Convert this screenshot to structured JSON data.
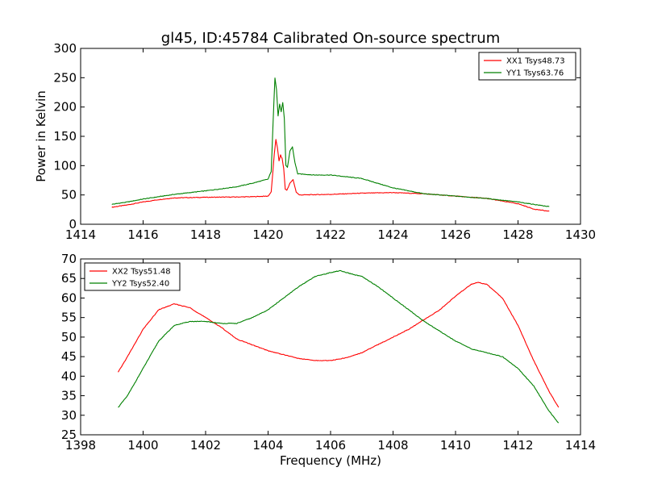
{
  "chart_data": [
    {
      "type": "line",
      "title": "gl45, ID:45784 Calibrated On-source spectrum",
      "xlabel": "",
      "ylabel": "Power in Kelvin",
      "xlim": [
        1414,
        1430
      ],
      "ylim": [
        0,
        300
      ],
      "xticks": [
        "1414",
        "1416",
        "1418",
        "1420",
        "1422",
        "1424",
        "1426",
        "1428",
        "1430"
      ],
      "yticks": [
        "0",
        "50",
        "100",
        "150",
        "200",
        "250",
        "300"
      ],
      "legend_position": "top-right",
      "series": [
        {
          "name": "XX1 Tsys48.73",
          "color": "#ff0000",
          "points": [
            [
              1415,
              29
            ],
            [
              1415.5,
              33
            ],
            [
              1416,
              38
            ],
            [
              1416.5,
              42
            ],
            [
              1417,
              45
            ],
            [
              1418,
              46
            ],
            [
              1419,
              46.5
            ],
            [
              1419.5,
              47
            ],
            [
              1420,
              48
            ],
            [
              1420.1,
              55
            ],
            [
              1420.2,
              120
            ],
            [
              1420.25,
              145
            ],
            [
              1420.3,
              130
            ],
            [
              1420.35,
              108
            ],
            [
              1420.4,
              118
            ],
            [
              1420.45,
              112
            ],
            [
              1420.5,
              95
            ],
            [
              1420.55,
              60
            ],
            [
              1420.6,
              58
            ],
            [
              1420.7,
              70
            ],
            [
              1420.8,
              76
            ],
            [
              1420.9,
              55
            ],
            [
              1421,
              50
            ],
            [
              1422,
              51
            ],
            [
              1423,
              53
            ],
            [
              1424,
              54
            ],
            [
              1425,
              52
            ],
            [
              1426,
              48
            ],
            [
              1427,
              44
            ],
            [
              1428,
              35
            ],
            [
              1428.5,
              26
            ],
            [
              1429,
              22
            ]
          ]
        },
        {
          "name": "YY1 Tsys63.76",
          "color": "#008000",
          "points": [
            [
              1415,
              34
            ],
            [
              1415.5,
              38
            ],
            [
              1416,
              43
            ],
            [
              1416.5,
              47
            ],
            [
              1417,
              51
            ],
            [
              1418,
              57
            ],
            [
              1419,
              64
            ],
            [
              1419.5,
              70
            ],
            [
              1420,
              77
            ],
            [
              1420.1,
              90
            ],
            [
              1420.18,
              200
            ],
            [
              1420.22,
              250
            ],
            [
              1420.27,
              230
            ],
            [
              1420.32,
              185
            ],
            [
              1420.37,
              205
            ],
            [
              1420.42,
              192
            ],
            [
              1420.47,
              208
            ],
            [
              1420.52,
              180
            ],
            [
              1420.57,
              100
            ],
            [
              1420.62,
              97
            ],
            [
              1420.7,
              125
            ],
            [
              1420.78,
              132
            ],
            [
              1420.86,
              105
            ],
            [
              1420.95,
              86
            ],
            [
              1421.5,
              84
            ],
            [
              1422,
              84
            ],
            [
              1423,
              78
            ],
            [
              1424,
              62
            ],
            [
              1425,
              52
            ],
            [
              1426,
              48
            ],
            [
              1427,
              44
            ],
            [
              1428,
              38
            ],
            [
              1429,
              30
            ]
          ]
        }
      ]
    },
    {
      "type": "line",
      "title": "",
      "xlabel": "Frequency (MHz)",
      "ylabel": "",
      "xlim": [
        1398,
        1414
      ],
      "ylim": [
        25,
        70
      ],
      "xticks": [
        "1398",
        "1400",
        "1402",
        "1404",
        "1406",
        "1408",
        "1410",
        "1412",
        "1414"
      ],
      "yticks": [
        "25",
        "30",
        "35",
        "40",
        "45",
        "50",
        "55",
        "60",
        "65",
        "70"
      ],
      "legend_position": "top-left",
      "series": [
        {
          "name": "XX2 Tsys51.48",
          "color": "#ff0000",
          "points": [
            [
              1399.2,
              41
            ],
            [
              1399.5,
              45
            ],
            [
              1400,
              52
            ],
            [
              1400.5,
              57
            ],
            [
              1401,
              58.5
            ],
            [
              1401.5,
              57.5
            ],
            [
              1402,
              55
            ],
            [
              1402.5,
              52.5
            ],
            [
              1403,
              49.5
            ],
            [
              1403.5,
              48
            ],
            [
              1404,
              46.5
            ],
            [
              1404.5,
              45.5
            ],
            [
              1405,
              44.5
            ],
            [
              1405.5,
              44
            ],
            [
              1406,
              44
            ],
            [
              1406.5,
              44.7
            ],
            [
              1407,
              46
            ],
            [
              1407.5,
              48
            ],
            [
              1408,
              50
            ],
            [
              1408.5,
              52
            ],
            [
              1409,
              54.5
            ],
            [
              1409.5,
              57
            ],
            [
              1410,
              60.5
            ],
            [
              1410.5,
              63.5
            ],
            [
              1410.7,
              64
            ],
            [
              1411,
              63.5
            ],
            [
              1411.5,
              60
            ],
            [
              1412,
              53
            ],
            [
              1412.5,
              44
            ],
            [
              1413,
              36
            ],
            [
              1413.3,
              32
            ]
          ]
        },
        {
          "name": "YY2 Tsys52.40",
          "color": "#008000",
          "points": [
            [
              1399.2,
              32
            ],
            [
              1399.5,
              35
            ],
            [
              1400,
              42
            ],
            [
              1400.5,
              49
            ],
            [
              1401,
              53
            ],
            [
              1401.5,
              54
            ],
            [
              1402,
              54
            ],
            [
              1402.5,
              53.5
            ],
            [
              1403,
              53.5
            ],
            [
              1403.5,
              55
            ],
            [
              1404,
              57
            ],
            [
              1404.5,
              60
            ],
            [
              1405,
              63
            ],
            [
              1405.5,
              65.5
            ],
            [
              1406,
              66.5
            ],
            [
              1406.3,
              67
            ],
            [
              1406.5,
              66.5
            ],
            [
              1407,
              65.5
            ],
            [
              1407.5,
              63
            ],
            [
              1408,
              60
            ],
            [
              1408.5,
              57
            ],
            [
              1409,
              54
            ],
            [
              1409.5,
              51.5
            ],
            [
              1410,
              49
            ],
            [
              1410.5,
              47
            ],
            [
              1411,
              46
            ],
            [
              1411.5,
              45
            ],
            [
              1412,
              42
            ],
            [
              1412.5,
              37.5
            ],
            [
              1413,
              31
            ],
            [
              1413.3,
              28
            ]
          ]
        }
      ]
    }
  ]
}
